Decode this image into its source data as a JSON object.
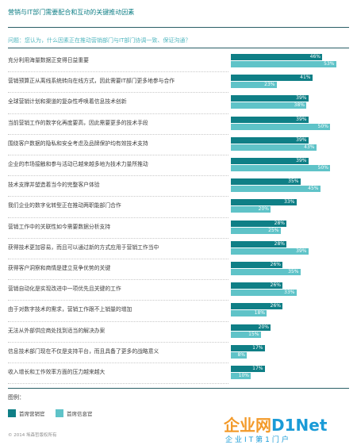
{
  "header": {
    "title": "营销与IT部门需要配合和互动的关键推动因素",
    "question": "问题：您认为，什么因素正在推动营销部门与IT部门协调一致、保证沟通？"
  },
  "chart_data": {
    "type": "bar",
    "orientation": "horizontal",
    "categories": [
      "充分利用海量数据正变得日益重要",
      "营销预算正从离线系统转向在线方式，因此需要IT部门更多地参与合作",
      "全球营销计划和渠道的复杂性呼唤着信息技术创新",
      "当前营销工作的数字化再度要高，因此需要更多的技术手段",
      "围绕客户数据的隐私和安全考虑及品牌保护均有效技术支持",
      "企业的市场接触和参与活动已越来越多地为技术力量所推动",
      "技术支撑并塑造着当今的完整客户体验",
      "我们企业的数字化转型正在推动两职能部门合作",
      "营销工作中的关联性如今需要数据分析支持",
      "获得技术更加容易，而且可以通过新的方式应用于营销工作当中",
      "获得客户洞察和商情是建立竞争优势的关键",
      "营销自动化是实现改进中一项优先且关键的工作",
      "由于对数字技术的需求，营销工作跟不上销量的增加",
      "无法从外部供应商处找到适当的解决办案",
      "信息技术部门现在不仅是支持平台，而且具备了更多的战略意义",
      "收入增长和工作效率方面的压力越来越大"
    ],
    "series": [
      {
        "name": "首席营销官",
        "color": "#0f7f86",
        "values": [
          46,
          41,
          39,
          39,
          39,
          39,
          35,
          33,
          28,
          28,
          26,
          26,
          26,
          20,
          17,
          17
        ]
      },
      {
        "name": "首席信息官",
        "color": "#5fc3c8",
        "values": [
          53,
          23,
          38,
          50,
          43,
          50,
          45,
          20,
          25,
          39,
          35,
          33,
          18,
          15,
          8,
          10
        ]
      }
    ],
    "value_suffix": "%",
    "xlim": [
      0,
      60
    ],
    "grid": false,
    "legend_position": "bottom-left"
  },
  "legend": {
    "title": "图例："
  },
  "footer": {
    "copyright": "© 2014 埃森哲版权所有"
  },
  "watermark": {
    "brand_cn": "企业网",
    "brand_en": "D1Net",
    "tagline": "企业IT第1门户"
  }
}
